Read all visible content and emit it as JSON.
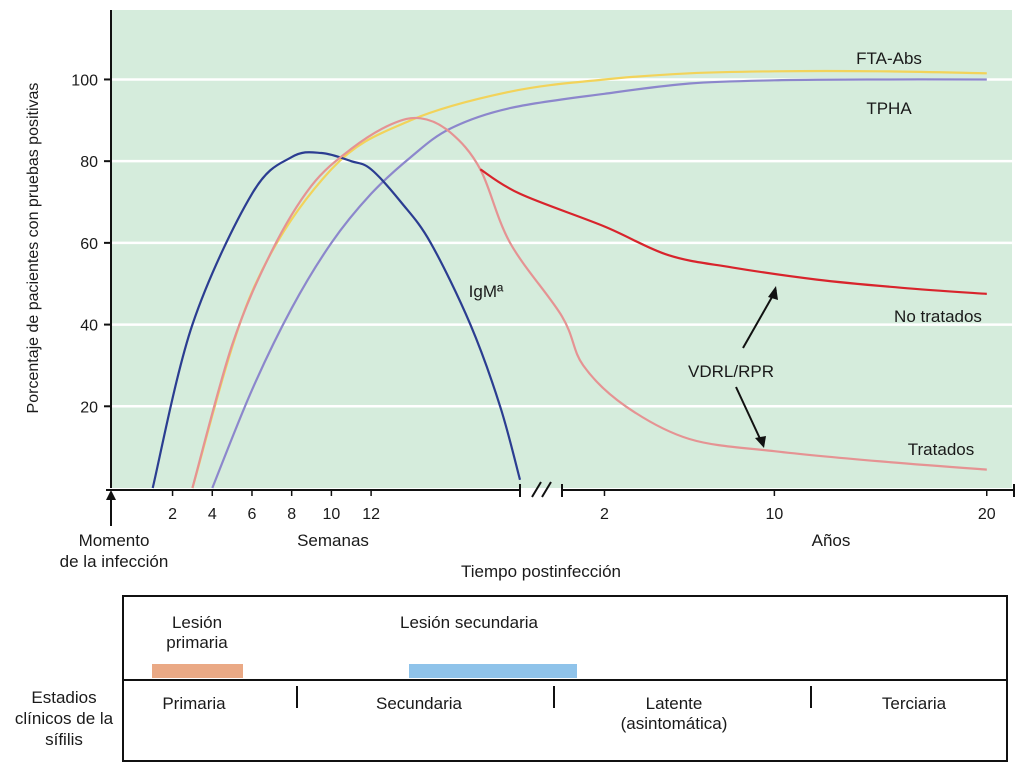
{
  "chart_data": {
    "type": "line",
    "ylabel": "Porcentaje de pacientes con pruebas positivas",
    "xlabel": "Tiempo postinfección",
    "ylim": [
      0,
      117
    ],
    "yticks": [
      20,
      40,
      60,
      80,
      100
    ],
    "x_segments": [
      {
        "label": "Semanas",
        "ticks": [
          2,
          4,
          6,
          8,
          10,
          12
        ],
        "range": [
          -1,
          19.5
        ]
      },
      {
        "label": "Años",
        "ticks": [
          2,
          10,
          20
        ],
        "range": [
          0,
          21
        ]
      }
    ],
    "origin_label": "Momento\nde la infección",
    "grid": true,
    "series": [
      {
        "name": "FTA-Abs",
        "color": "#f2d35a",
        "points": [
          [
            "w",
            3,
            0
          ],
          [
            "w",
            6,
            48
          ],
          [
            "w",
            10,
            78
          ],
          [
            "w",
            14,
            90
          ],
          [
            "w",
            19,
            97
          ],
          [
            "y",
            2,
            100
          ],
          [
            "y",
            6,
            101.5
          ],
          [
            "y",
            10,
            102
          ],
          [
            "y",
            15,
            102
          ],
          [
            "y",
            20,
            101.5
          ]
        ]
      },
      {
        "name": "TPHA",
        "color": "#8c87cc",
        "points": [
          [
            "w",
            4,
            0
          ],
          [
            "w",
            6,
            24
          ],
          [
            "w",
            8,
            44
          ],
          [
            "w",
            10,
            60
          ],
          [
            "w",
            12,
            72
          ],
          [
            "w",
            14,
            81
          ],
          [
            "w",
            16,
            88
          ],
          [
            "w",
            19,
            93
          ],
          [
            "y",
            2,
            96.5
          ],
          [
            "y",
            6,
            99
          ],
          [
            "y",
            10,
            99.8
          ],
          [
            "y",
            15,
            100
          ],
          [
            "y",
            20,
            100
          ]
        ]
      },
      {
        "name": "IgMª",
        "color": "#2b3d91",
        "points": [
          [
            "w",
            1,
            0
          ],
          [
            "w",
            3,
            40
          ],
          [
            "w",
            6,
            72
          ],
          [
            "w",
            8,
            81
          ],
          [
            "w",
            9.5,
            82
          ],
          [
            "w",
            11,
            80
          ],
          [
            "w",
            12,
            78
          ],
          [
            "w",
            13.5,
            70
          ],
          [
            "w",
            15,
            60
          ],
          [
            "w",
            17,
            40
          ],
          [
            "w",
            18.5,
            20
          ],
          [
            "w",
            19.5,
            2
          ]
        ]
      },
      {
        "name": "VDRL/RPR",
        "color": "#e59393",
        "points": [
          [
            "w",
            3,
            0
          ],
          [
            "w",
            5,
            35
          ],
          [
            "w",
            7,
            58
          ],
          [
            "w",
            9,
            74
          ],
          [
            "w",
            11,
            83
          ],
          [
            "w",
            13,
            89
          ],
          [
            "w",
            14.5,
            90.5
          ],
          [
            "w",
            16,
            87
          ],
          [
            "w",
            17.5,
            78
          ],
          [
            "w",
            19,
            60
          ],
          [
            "y",
            0,
            42
          ],
          [
            "y",
            1,
            30
          ],
          [
            "y",
            3,
            20
          ],
          [
            "y",
            6,
            12
          ],
          [
            "y",
            10,
            9
          ],
          [
            "y",
            15,
            6.5
          ],
          [
            "y",
            20,
            4.5
          ]
        ]
      },
      {
        "name": "No tratados",
        "color": "#d8242c",
        "points": [
          [
            "w",
            17.5,
            78
          ],
          [
            "w",
            19.5,
            72
          ],
          [
            "y",
            2,
            64
          ],
          [
            "y",
            5,
            57
          ],
          [
            "y",
            8,
            54
          ],
          [
            "y",
            12,
            51
          ],
          [
            "y",
            16,
            49
          ],
          [
            "y",
            20,
            47.5
          ]
        ]
      }
    ],
    "annotations": [
      "FTA-Abs",
      "TPHA",
      "IgMª",
      "No tratados",
      "VDRL/RPR",
      "Tratados"
    ],
    "axis_labels": {
      "weeks": "Semanas",
      "years": "Años"
    }
  },
  "stages": {
    "title": "Estadios clínicos de la sífilis",
    "lesions": [
      {
        "label": "Lesión primaria",
        "color": "#eaa985"
      },
      {
        "label": "Lesión secundaria",
        "color": "#8fc3ea"
      }
    ],
    "items": [
      {
        "label": "Primaria"
      },
      {
        "label": "Secundaria"
      },
      {
        "label": "Latente (asintomática)"
      },
      {
        "label": "Terciaria"
      }
    ]
  }
}
